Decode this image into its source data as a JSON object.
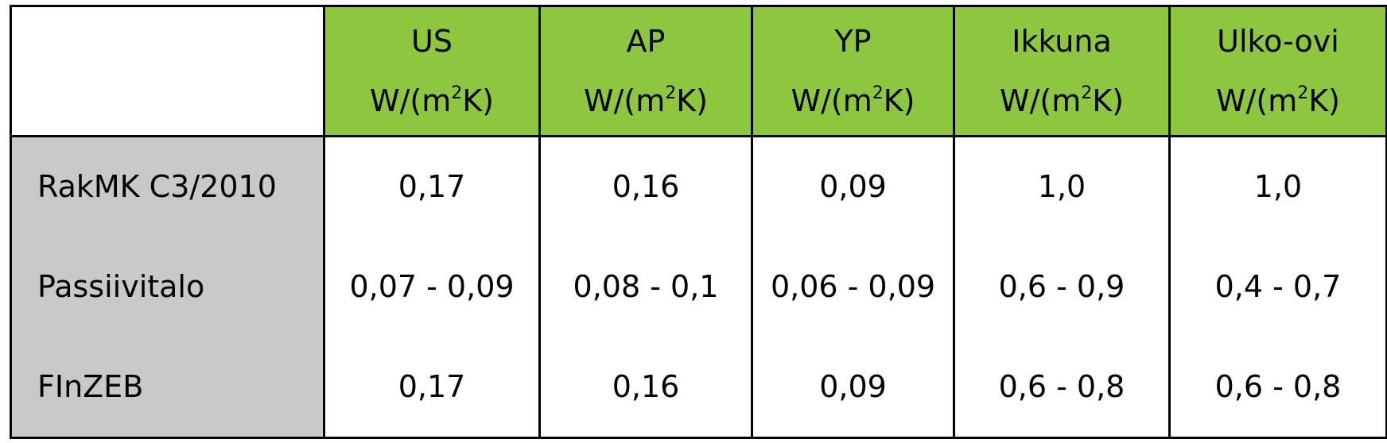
{
  "table": {
    "corner": "",
    "columns": [
      {
        "name": "US",
        "unit_prefix": "W/(m",
        "unit_sup": "2",
        "unit_suffix": "K)"
      },
      {
        "name": "AP",
        "unit_prefix": "W/(m",
        "unit_sup": "2",
        "unit_suffix": "K)"
      },
      {
        "name": "YP",
        "unit_prefix": "W/(m",
        "unit_sup": "2",
        "unit_suffix": "K)"
      },
      {
        "name": "Ikkuna",
        "unit_prefix": "W/(m",
        "unit_sup": "2",
        "unit_suffix": "K)"
      },
      {
        "name": "Ulko-ovi",
        "unit_prefix": "W/(m",
        "unit_sup": "2",
        "unit_suffix": "K)"
      }
    ],
    "rows": [
      {
        "label": "RakMK C3/2010",
        "cells": [
          "0,17",
          "0,16",
          "0,09",
          "1,0",
          "1,0"
        ]
      },
      {
        "label": "Passiivitalo",
        "cells": [
          "0,07 - 0,09",
          "0,08 - 0,1",
          "0,06 - 0,09",
          "0,6 - 0,9",
          "0,4 - 0,7"
        ]
      },
      {
        "label": "FInZEB",
        "cells": [
          "0,17",
          "0,16",
          "0,09",
          "0,6 - 0,8",
          "0,6 - 0,8"
        ]
      }
    ],
    "colors": {
      "header_bg": "#8dc63f",
      "row_header_bg": "#c8c9cb",
      "border": "#000000"
    }
  }
}
